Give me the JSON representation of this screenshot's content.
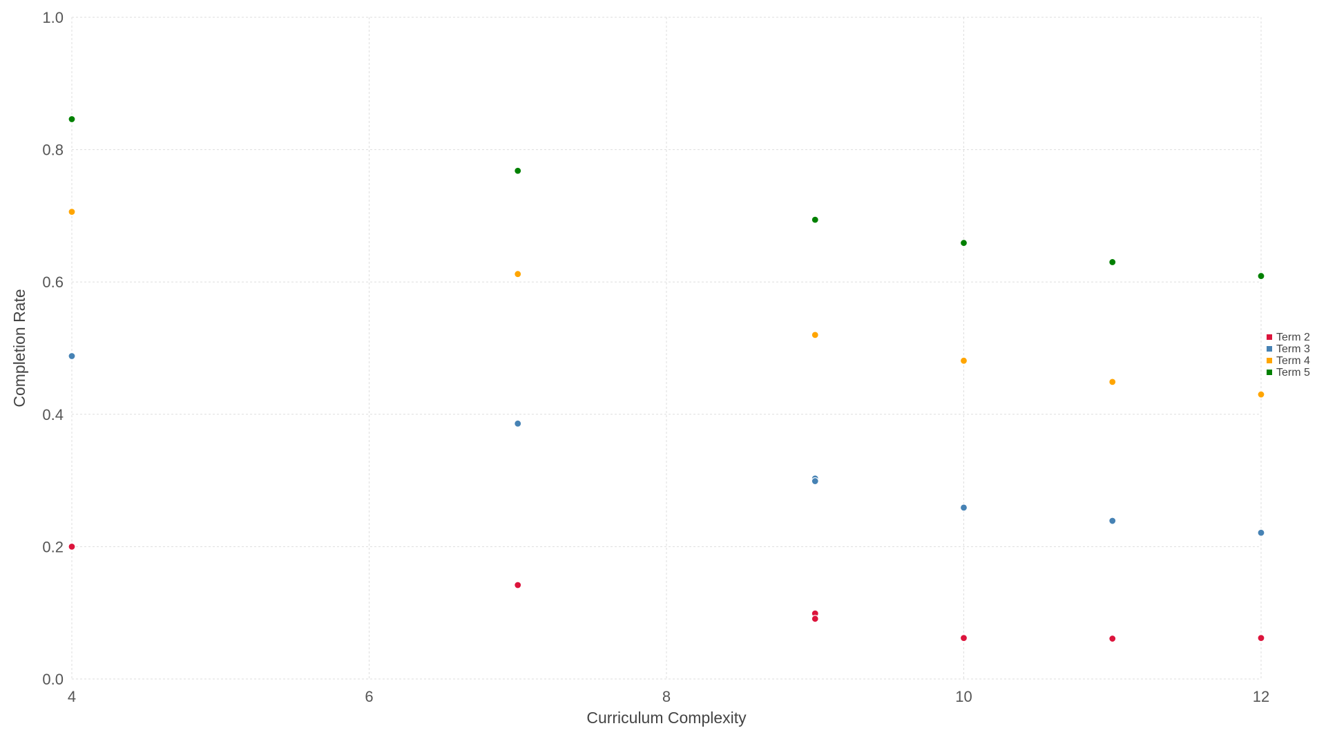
{
  "chart_data": {
    "type": "scatter",
    "title": "",
    "xlabel": "Curriculum Complexity",
    "ylabel": "Completion Rate",
    "xlim": [
      4,
      12
    ],
    "ylim": [
      0,
      1
    ],
    "xticks": [
      4,
      6,
      8,
      10,
      12
    ],
    "yticks": [
      0.0,
      0.2,
      0.4,
      0.6,
      0.8,
      1.0
    ],
    "x_tick_labels": [
      "4",
      "6",
      "8",
      "10",
      "12"
    ],
    "y_tick_labels": [
      "0.0",
      "0.2",
      "0.4",
      "0.6",
      "0.8",
      "1.0"
    ],
    "grid": true,
    "legend_position": "right",
    "series": [
      {
        "name": "Term 2",
        "color": "#dc143c",
        "points": [
          {
            "x": 4,
            "y": 0.2
          },
          {
            "x": 7,
            "y": 0.142
          },
          {
            "x": 9,
            "y": 0.099
          },
          {
            "x": 9,
            "y": 0.091
          },
          {
            "x": 10,
            "y": 0.062
          },
          {
            "x": 11,
            "y": 0.061
          },
          {
            "x": 12,
            "y": 0.062
          }
        ]
      },
      {
        "name": "Term 3",
        "color": "#4682b4",
        "points": [
          {
            "x": 4,
            "y": 0.488
          },
          {
            "x": 7,
            "y": 0.386
          },
          {
            "x": 9,
            "y": 0.303
          },
          {
            "x": 9,
            "y": 0.299
          },
          {
            "x": 10,
            "y": 0.259
          },
          {
            "x": 11,
            "y": 0.239
          },
          {
            "x": 12,
            "y": 0.221
          }
        ]
      },
      {
        "name": "Term 4",
        "color": "#ffa500",
        "points": [
          {
            "x": 4,
            "y": 0.706
          },
          {
            "x": 7,
            "y": 0.612
          },
          {
            "x": 9,
            "y": 0.52
          },
          {
            "x": 10,
            "y": 0.481
          },
          {
            "x": 11,
            "y": 0.449
          },
          {
            "x": 12,
            "y": 0.43
          }
        ]
      },
      {
        "name": "Term 5",
        "color": "#008000",
        "points": [
          {
            "x": 4,
            "y": 0.846
          },
          {
            "x": 7,
            "y": 0.768
          },
          {
            "x": 9,
            "y": 0.694
          },
          {
            "x": 10,
            "y": 0.659
          },
          {
            "x": 11,
            "y": 0.63
          },
          {
            "x": 12,
            "y": 0.609
          }
        ]
      }
    ]
  }
}
